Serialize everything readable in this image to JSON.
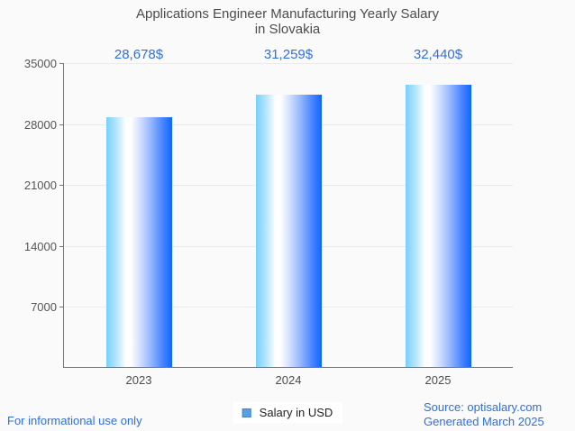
{
  "title": {
    "line1": "Applications Engineer Manufacturing Yearly Salary",
    "line2": "in Slovakia"
  },
  "chart_data": {
    "type": "bar",
    "title": "Applications Engineer Manufacturing Yearly Salary in Slovakia",
    "categories": [
      "2023",
      "2024",
      "2025"
    ],
    "values": [
      28678,
      31259,
      32440
    ],
    "value_labels": [
      "28,678$",
      "31,259$",
      "32,440$"
    ],
    "series": [
      {
        "name": "Salary in USD",
        "values": [
          28678,
          31259,
          32440
        ]
      }
    ],
    "ylim": [
      0,
      35000
    ],
    "yticks": [
      7000,
      14000,
      21000,
      28000,
      35000
    ],
    "ytick_labels": [
      "7000",
      "14000",
      "21000",
      "28000",
      "35000"
    ],
    "xlabel": "",
    "ylabel": "",
    "grid": true,
    "legend_position": "bottom"
  },
  "legend": {
    "label": "Salary in USD",
    "marker_fill": "#57a0e8",
    "marker_border": "#4a7fc1"
  },
  "footer": {
    "disclaimer": "For informational use only",
    "source": "Source: optisalary.com",
    "generated": "Generated March 2025"
  },
  "colors": {
    "background": "#fafafa",
    "title_text": "#4c4c4c",
    "tick_text": "#555555",
    "axis": "#757575",
    "gridline": "#ebebeb",
    "value_label_text": "#2f6fe0",
    "footer_text": "#2f6fe0",
    "bar_gradient_left": "#76cffb",
    "bar_gradient_mid": "#ffffff",
    "bar_gradient_right": "#0d67fe"
  }
}
